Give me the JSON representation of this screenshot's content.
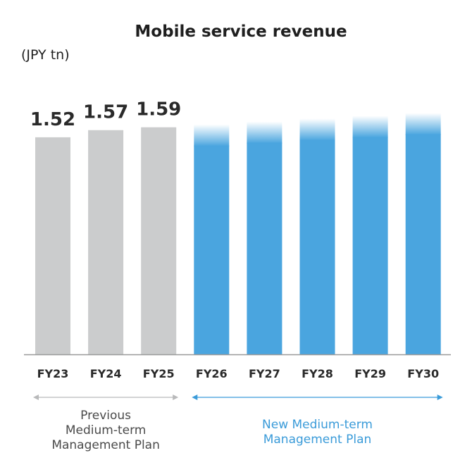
{
  "chart_data": {
    "type": "bar",
    "title": "Mobile service revenue",
    "unit": "(JPY tn)",
    "categories": [
      "FY23",
      "FY24",
      "FY25",
      "FY26",
      "FY27",
      "FY28",
      "FY29",
      "FY30"
    ],
    "values": [
      1.52,
      1.57,
      1.59,
      1.61,
      1.63,
      1.65,
      1.67,
      1.69
    ],
    "value_labels": [
      "1.52",
      "1.57",
      "1.59",
      "",
      "",
      "",
      "",
      ""
    ],
    "ylim": [
      0,
      1.84
    ],
    "grid": false,
    "colors": {
      "previous": "#cbcccd",
      "new": "#4aa5df",
      "axis": "#9a9a9a"
    },
    "periods": [
      {
        "lines": [
          "Previous",
          "Medium-term",
          "Management Plan"
        ],
        "from": 0,
        "to": 2,
        "color": "#b8b9ba",
        "text_color": "#4a4a4a"
      },
      {
        "lines": [
          "New Medium-term",
          "Management Plan"
        ],
        "from": 3,
        "to": 7,
        "color": "#3a9bd9",
        "text_color": "#3a9bd9"
      }
    ]
  }
}
